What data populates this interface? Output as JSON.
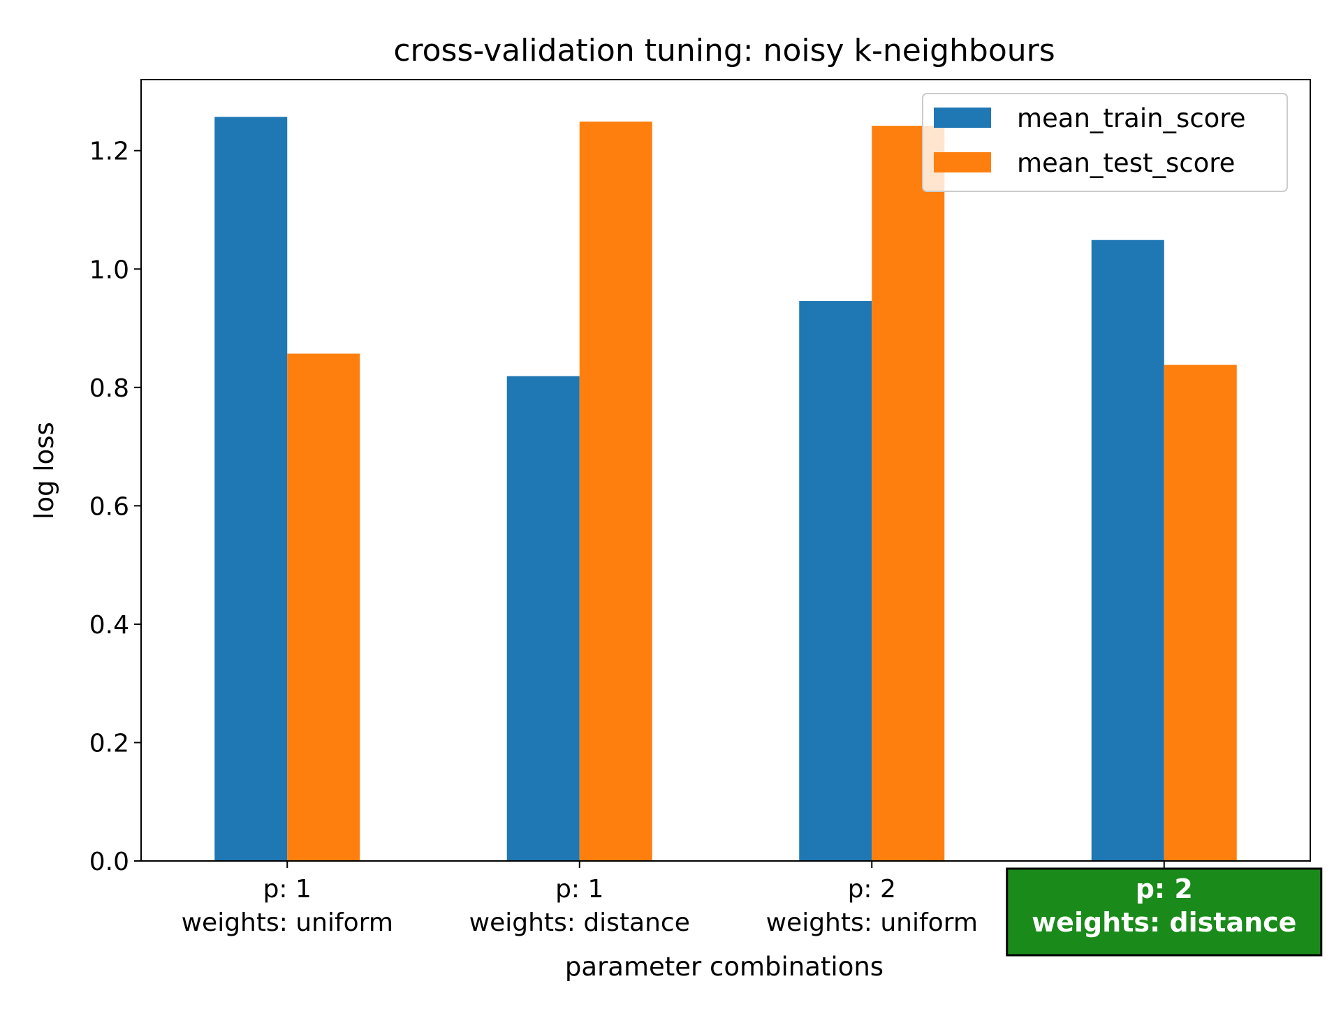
{
  "chart_data": {
    "type": "bar",
    "title": "cross-validation tuning: noisy k-neighbours",
    "xlabel": "parameter combinations",
    "ylabel": "log loss",
    "ylim": [
      0,
      1.32
    ],
    "yticks": [
      "0.0",
      "0.2",
      "0.4",
      "0.6",
      "0.8",
      "1.0",
      "1.2"
    ],
    "categories": [
      {
        "line1": "p: 1",
        "line2": "weights: uniform",
        "highlighted": false
      },
      {
        "line1": "p: 1",
        "line2": "weights: distance",
        "highlighted": false
      },
      {
        "line1": "p: 2",
        "line2": "weights: uniform",
        "highlighted": false
      },
      {
        "line1": "p: 2",
        "line2": "weights: distance",
        "highlighted": true
      }
    ],
    "series": [
      {
        "name": "mean_train_score",
        "color": "#1f77b4",
        "values": [
          1.257,
          0.819,
          0.946,
          1.049
        ]
      },
      {
        "name": "mean_test_score",
        "color": "#ff7f0e",
        "values": [
          0.857,
          1.249,
          1.242,
          0.838
        ]
      }
    ],
    "grid": false,
    "legend_position": "top-right",
    "highlight_color": "#1a8a1a"
  }
}
